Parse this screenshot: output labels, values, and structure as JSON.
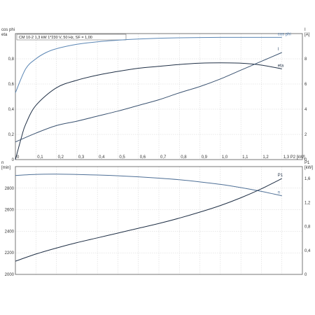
{
  "chart_data": [
    {
      "type": "line",
      "subtitle": "CM 10-2   1,3 kW   1*230 V, 50 Hz, SF = 1,00",
      "x_axis": {
        "label": "P2 [kW]",
        "range": [
          0,
          1.4
        ],
        "ticks": [
          0,
          0.1,
          0.2,
          0.3,
          0.4,
          0.5,
          0.6,
          0.7,
          0.8,
          0.9,
          1.0,
          1.1,
          1.2,
          1.3
        ],
        "tick_labels": [
          "0",
          "0,1",
          "0,2",
          "0,3",
          "0,4",
          "0,5",
          "0,6",
          "0,7",
          "0,8",
          "0,9",
          "1,0",
          "1,1",
          "1,2",
          "1,3"
        ]
      },
      "y_left": {
        "label_line1": "cos phi",
        "label_line2": "eta",
        "range": [
          0,
          1.0
        ],
        "ticks": [
          0,
          0.2,
          0.4,
          0.6,
          0.8
        ],
        "tick_labels": [
          "0",
          "0,2",
          "0,4",
          "0,6",
          "0,8"
        ]
      },
      "y_right": {
        "label_line1": "I",
        "label_line2": "[A]",
        "range": [
          0,
          10
        ],
        "ticks": [
          0,
          2,
          4,
          6,
          8
        ],
        "tick_labels": [
          "0",
          "2",
          "4",
          "6",
          "8"
        ]
      },
      "grid": true,
      "series": [
        {
          "name": "cos phi",
          "axis": "left",
          "color": "#5b86b4",
          "x": [
            0,
            0.05,
            0.1,
            0.15,
            0.2,
            0.3,
            0.4,
            0.5,
            0.6,
            0.7,
            0.8,
            0.9,
            1.0,
            1.1,
            1.2,
            1.3
          ],
          "y": [
            0.53,
            0.72,
            0.8,
            0.85,
            0.88,
            0.915,
            0.935,
            0.948,
            0.957,
            0.963,
            0.967,
            0.969,
            0.97,
            0.97,
            0.97,
            0.97
          ]
        },
        {
          "name": "eta",
          "axis": "left",
          "color": "#1f2f45",
          "x": [
            0,
            0.03,
            0.05,
            0.1,
            0.2,
            0.3,
            0.4,
            0.5,
            0.6,
            0.7,
            0.8,
            0.9,
            1.0,
            1.1,
            1.2,
            1.3
          ],
          "y": [
            0.0,
            0.18,
            0.28,
            0.43,
            0.57,
            0.63,
            0.67,
            0.7,
            0.725,
            0.74,
            0.755,
            0.765,
            0.768,
            0.765,
            0.75,
            0.72
          ]
        },
        {
          "name": "I",
          "axis": "right",
          "color": "#3a5270",
          "x": [
            0,
            0.1,
            0.2,
            0.3,
            0.4,
            0.5,
            0.6,
            0.7,
            0.8,
            0.9,
            1.0,
            1.1,
            1.2,
            1.3
          ],
          "y": [
            1.4,
            2.1,
            2.7,
            3.05,
            3.45,
            3.85,
            4.3,
            4.75,
            5.3,
            5.8,
            6.4,
            7.1,
            7.8,
            8.5
          ]
        }
      ]
    },
    {
      "type": "line",
      "x_axis": {
        "label": "",
        "range": [
          0,
          1.4
        ],
        "ticks": [
          0,
          0.1,
          0.2,
          0.3,
          0.4,
          0.5,
          0.6,
          0.7,
          0.8,
          0.9,
          1.0,
          1.1,
          1.2,
          1.3
        ]
      },
      "y_left": {
        "label_line1": "n",
        "label_line2": "[min]",
        "range": [
          2000,
          3000
        ],
        "ticks": [
          2000,
          2200,
          2400,
          2600,
          2800
        ],
        "tick_labels": [
          "2000",
          "2200",
          "2400",
          "2600",
          "2800"
        ]
      },
      "y_right": {
        "label_line1": "P1",
        "label_line2": "[kW]",
        "range": [
          0,
          1.8
        ],
        "ticks": [
          0,
          0.4,
          0.8,
          1.2,
          1.6
        ],
        "tick_labels": [
          "0",
          "0,4",
          "0,8",
          "1,2",
          "1,6"
        ]
      },
      "grid": true,
      "series": [
        {
          "name": "n",
          "axis": "left",
          "color": "#4e6f96",
          "x": [
            0,
            0.1,
            0.2,
            0.3,
            0.4,
            0.5,
            0.6,
            0.7,
            0.8,
            0.9,
            1.0,
            1.1,
            1.2,
            1.3
          ],
          "y": [
            2918,
            2928,
            2930,
            2927,
            2922,
            2915,
            2905,
            2893,
            2878,
            2858,
            2835,
            2805,
            2770,
            2730
          ]
        },
        {
          "name": "P1",
          "axis": "right",
          "color": "#1f2f45",
          "x": [
            0,
            0.1,
            0.2,
            0.3,
            0.4,
            0.5,
            0.6,
            0.7,
            0.8,
            0.9,
            1.0,
            1.1,
            1.2,
            1.3
          ],
          "y": [
            0.22,
            0.34,
            0.44,
            0.53,
            0.61,
            0.69,
            0.77,
            0.85,
            0.94,
            1.04,
            1.15,
            1.28,
            1.43,
            1.6
          ]
        }
      ]
    }
  ]
}
